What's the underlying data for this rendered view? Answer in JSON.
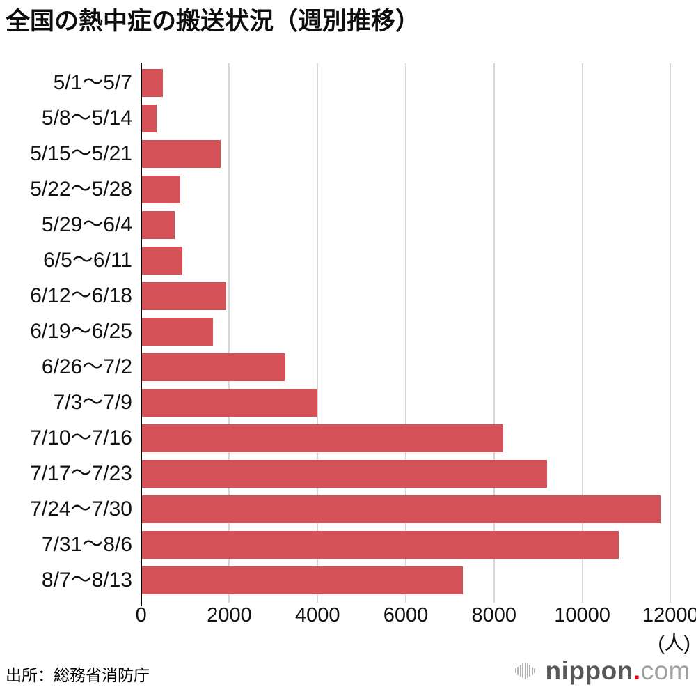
{
  "title": "全国の熱中症の搬送状況（週別推移）",
  "source": "出所：総務省消防庁",
  "unit_label": "(人)",
  "logo": {
    "name": "nippon",
    "dot": ".",
    "tld": "com"
  },
  "colors": {
    "bar": "#d45257",
    "gridline": "#d6d6d6",
    "axis": "#000000",
    "text": "#111111",
    "logo_dark_gray": "#595757",
    "logo_light_gray": "#9fa0a0",
    "logo_red": "#e60012",
    "logo_icon_gray": "#b2b2b3"
  },
  "chart_data": {
    "type": "bar",
    "orientation": "horizontal",
    "title": "全国の熱中症の搬送状況（週別推移）",
    "xlabel": "(人)",
    "ylabel": "",
    "categories": [
      "5/1～5/7",
      "5/8～5/14",
      "5/15～5/21",
      "5/22～5/28",
      "5/29～6/4",
      "6/5～6/11",
      "6/12～6/18",
      "6/19～6/25",
      "6/26～7/2",
      "7/3～7/9",
      "7/10～7/16",
      "7/17～7/23",
      "7/24～7/30",
      "7/31～8/6",
      "8/7～8/13"
    ],
    "values": [
      480,
      330,
      1790,
      870,
      740,
      920,
      1910,
      1610,
      3250,
      3970,
      8190,
      9190,
      11760,
      10810,
      7270
    ],
    "xlim": [
      0,
      12000
    ],
    "xticks": [
      0,
      2000,
      4000,
      6000,
      8000,
      10000,
      12000
    ],
    "xtick_labels": [
      "0",
      "2000",
      "4000",
      "6000",
      "8000",
      "10000",
      "12000"
    ],
    "grid": true,
    "legend": false,
    "source": "出所：総務省消防庁"
  },
  "logo_icon_bar_heights": [
    7,
    12,
    17,
    21,
    24,
    21,
    17,
    12,
    7
  ]
}
